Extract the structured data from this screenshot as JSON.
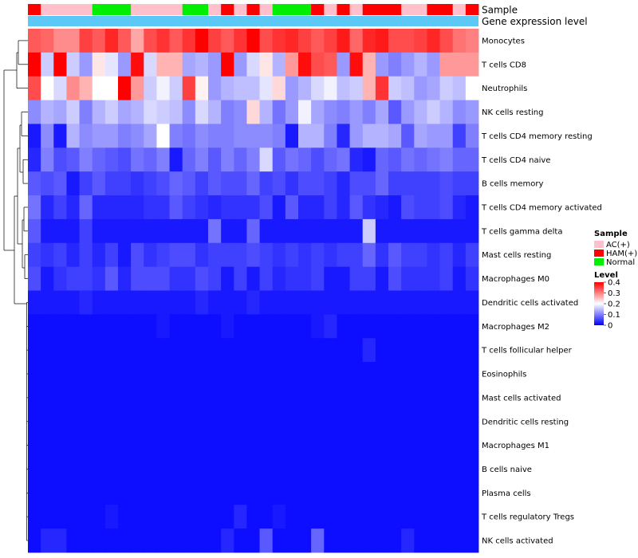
{
  "chart_data": {
    "type": "heatmap",
    "annotation_tracks": [
      {
        "name": "Sample",
        "values": [
          "HAM(+)",
          "AC(+)",
          "AC(+)",
          "AC(+)",
          "AC(+)",
          "Normal",
          "Normal",
          "Normal",
          "AC(+)",
          "AC(+)",
          "AC(+)",
          "AC(+)",
          "Normal",
          "Normal",
          "AC(+)",
          "HAM(+)",
          "AC(+)",
          "HAM(+)",
          "AC(+)",
          "Normal",
          "Normal",
          "Normal",
          "HAM(+)",
          "AC(+)",
          "HAM(+)",
          "AC(+)",
          "HAM(+)",
          "HAM(+)",
          "HAM(+)",
          "AC(+)",
          "AC(+)",
          "HAM(+)",
          "HAM(+)",
          "AC(+)",
          "HAM(+)"
        ]
      },
      {
        "name": "Gene expression level"
      }
    ],
    "rows": [
      "Monocytes",
      "T cells CD8",
      "Neutrophils",
      "NK cells resting",
      "T cells CD4 memory resting",
      "T cells CD4 naive",
      "B cells memory",
      "T cells CD4 memory activated",
      "T cells gamma delta",
      "Mast cells resting",
      "Macrophages M0",
      "Dendritic cells activated",
      "Macrophages M2",
      "T cells follicular helper",
      "Eosinophils",
      "Mast cells activated",
      "Dendritic cells resting",
      "Macrophages M1",
      "B cells naive",
      "Plasma cells",
      "T cells regulatory  Tregs",
      "NK cells activated"
    ],
    "values": [
      [
        0.33,
        0.32,
        0.29,
        0.29,
        0.35,
        0.33,
        0.37,
        0.33,
        0.27,
        0.34,
        0.36,
        0.33,
        0.36,
        0.4,
        0.35,
        0.33,
        0.36,
        0.4,
        0.34,
        0.36,
        0.37,
        0.35,
        0.33,
        0.35,
        0.38,
        0.32,
        0.37,
        0.38,
        0.34,
        0.34,
        0.35,
        0.37,
        0.34,
        0.31,
        0.3
      ],
      [
        0.4,
        0.16,
        0.4,
        0.16,
        0.12,
        0.22,
        0.18,
        0.12,
        0.39,
        0.17,
        0.26,
        0.26,
        0.13,
        0.14,
        0.12,
        0.4,
        0.12,
        0.17,
        0.22,
        0.14,
        0.28,
        0.39,
        0.34,
        0.33,
        0.12,
        0.39,
        0.26,
        0.12,
        0.1,
        0.12,
        0.14,
        0.12,
        0.28,
        0.28,
        0.28
      ],
      [
        0.34,
        0.2,
        0.17,
        0.29,
        0.26,
        0.2,
        0.2,
        0.4,
        0.28,
        0.16,
        0.19,
        0.16,
        0.35,
        0.21,
        0.12,
        0.14,
        0.15,
        0.15,
        0.18,
        0.23,
        0.12,
        0.14,
        0.17,
        0.19,
        0.15,
        0.16,
        0.26,
        0.36,
        0.16,
        0.15,
        0.12,
        0.13,
        0.16,
        0.15,
        0.2
      ],
      [
        0.11,
        0.14,
        0.13,
        0.16,
        0.1,
        0.14,
        0.16,
        0.13,
        0.14,
        0.17,
        0.16,
        0.15,
        0.11,
        0.17,
        0.14,
        0.1,
        0.11,
        0.23,
        0.14,
        0.09,
        0.12,
        0.19,
        0.13,
        0.11,
        0.1,
        0.12,
        0.1,
        0.13,
        0.07,
        0.12,
        0.14,
        0.16,
        0.14,
        0.11,
        0.12
      ],
      [
        0.02,
        0.11,
        0.02,
        0.14,
        0.11,
        0.12,
        0.12,
        0.1,
        0.11,
        0.13,
        0.2,
        0.1,
        0.09,
        0.11,
        0.1,
        0.1,
        0.11,
        0.11,
        0.11,
        0.1,
        0.02,
        0.14,
        0.14,
        0.1,
        0.03,
        0.12,
        0.14,
        0.14,
        0.13,
        0.07,
        0.13,
        0.12,
        0.12,
        0.05,
        0.1
      ],
      [
        0.03,
        0.1,
        0.06,
        0.07,
        0.1,
        0.08,
        0.07,
        0.06,
        0.09,
        0.08,
        0.1,
        0.02,
        0.08,
        0.1,
        0.07,
        0.1,
        0.08,
        0.1,
        0.17,
        0.07,
        0.09,
        0.08,
        0.06,
        0.08,
        0.09,
        0.03,
        0.02,
        0.08,
        0.07,
        0.09,
        0.08,
        0.09,
        0.1,
        0.08,
        0.08
      ],
      [
        0.07,
        0.06,
        0.07,
        0.02,
        0.05,
        0.07,
        0.05,
        0.05,
        0.04,
        0.05,
        0.06,
        0.08,
        0.07,
        0.05,
        0.07,
        0.06,
        0.06,
        0.08,
        0.05,
        0.06,
        0.04,
        0.06,
        0.06,
        0.05,
        0.03,
        0.06,
        0.06,
        0.08,
        0.05,
        0.05,
        0.05,
        0.05,
        0.06,
        0.05,
        0.05
      ],
      [
        0.09,
        0.03,
        0.05,
        0.03,
        0.08,
        0.03,
        0.03,
        0.03,
        0.03,
        0.04,
        0.04,
        0.07,
        0.05,
        0.04,
        0.03,
        0.04,
        0.04,
        0.04,
        0.06,
        0.02,
        0.07,
        0.03,
        0.03,
        0.05,
        0.03,
        0.07,
        0.04,
        0.03,
        0.02,
        0.06,
        0.05,
        0.05,
        0.06,
        0.03,
        0.02
      ],
      [
        0.07,
        0.02,
        0.02,
        0.02,
        0.05,
        0.02,
        0.02,
        0.02,
        0.02,
        0.02,
        0.02,
        0.02,
        0.02,
        0.02,
        0.09,
        0.02,
        0.02,
        0.08,
        0.02,
        0.02,
        0.02,
        0.02,
        0.02,
        0.02,
        0.02,
        0.02,
        0.16,
        0.02,
        0.02,
        0.02,
        0.02,
        0.02,
        0.02,
        0.02,
        0.02
      ],
      [
        0.05,
        0.04,
        0.05,
        0.03,
        0.05,
        0.03,
        0.05,
        0.02,
        0.06,
        0.04,
        0.05,
        0.06,
        0.06,
        0.04,
        0.05,
        0.05,
        0.05,
        0.06,
        0.05,
        0.04,
        0.05,
        0.04,
        0.05,
        0.04,
        0.05,
        0.05,
        0.08,
        0.04,
        0.07,
        0.05,
        0.05,
        0.04,
        0.05,
        0.03,
        0.05
      ],
      [
        0.06,
        0.02,
        0.04,
        0.05,
        0.05,
        0.04,
        0.07,
        0.03,
        0.06,
        0.06,
        0.06,
        0.04,
        0.04,
        0.06,
        0.05,
        0.02,
        0.05,
        0.02,
        0.05,
        0.03,
        0.04,
        0.04,
        0.05,
        0.02,
        0.02,
        0.05,
        0.05,
        0.02,
        0.06,
        0.04,
        0.04,
        0.04,
        0.05,
        0.02,
        0.04
      ],
      [
        0.02,
        0.02,
        0.02,
        0.02,
        0.03,
        0.02,
        0.02,
        0.02,
        0.02,
        0.02,
        0.02,
        0.02,
        0.02,
        0.03,
        0.02,
        0.02,
        0.02,
        0.03,
        0.02,
        0.02,
        0.02,
        0.02,
        0.02,
        0.02,
        0.02,
        0.02,
        0.02,
        0.02,
        0.02,
        0.02,
        0.02,
        0.02,
        0.02,
        0.02,
        0.02
      ],
      [
        0.01,
        0.01,
        0.01,
        0.01,
        0.01,
        0.01,
        0.01,
        0.01,
        0.01,
        0.01,
        0.02,
        0.01,
        0.01,
        0.01,
        0.01,
        0.02,
        0.01,
        0.01,
        0.01,
        0.01,
        0.01,
        0.01,
        0.02,
        0.03,
        0.01,
        0.01,
        0.01,
        0.01,
        0.01,
        0.01,
        0.01,
        0.01,
        0.01,
        0.01,
        0.01
      ],
      [
        0.01,
        0.01,
        0.01,
        0.01,
        0.01,
        0.01,
        0.01,
        0.01,
        0.01,
        0.01,
        0.01,
        0.01,
        0.01,
        0.01,
        0.01,
        0.01,
        0.01,
        0.01,
        0.01,
        0.01,
        0.01,
        0.01,
        0.01,
        0.01,
        0.01,
        0.01,
        0.03,
        0.01,
        0.01,
        0.01,
        0.01,
        0.01,
        0.01,
        0.01,
        0.01
      ],
      [
        0.01,
        0.01,
        0.01,
        0.01,
        0.01,
        0.01,
        0.01,
        0.01,
        0.01,
        0.01,
        0.01,
        0.01,
        0.01,
        0.01,
        0.01,
        0.01,
        0.01,
        0.01,
        0.01,
        0.01,
        0.01,
        0.01,
        0.01,
        0.01,
        0.01,
        0.01,
        0.01,
        0.01,
        0.01,
        0.01,
        0.01,
        0.01,
        0.01,
        0.01,
        0.01
      ],
      [
        0.01,
        0.01,
        0.01,
        0.01,
        0.01,
        0.01,
        0.01,
        0.01,
        0.01,
        0.01,
        0.01,
        0.01,
        0.01,
        0.01,
        0.01,
        0.01,
        0.01,
        0.01,
        0.01,
        0.01,
        0.01,
        0.01,
        0.01,
        0.01,
        0.01,
        0.01,
        0.01,
        0.01,
        0.01,
        0.01,
        0.01,
        0.01,
        0.01,
        0.01,
        0.01
      ],
      [
        0.01,
        0.01,
        0.01,
        0.01,
        0.01,
        0.01,
        0.01,
        0.01,
        0.01,
        0.01,
        0.01,
        0.01,
        0.01,
        0.01,
        0.01,
        0.01,
        0.01,
        0.01,
        0.01,
        0.01,
        0.01,
        0.01,
        0.01,
        0.01,
        0.01,
        0.01,
        0.01,
        0.01,
        0.01,
        0.01,
        0.01,
        0.01,
        0.01,
        0.01,
        0.01
      ],
      [
        0.01,
        0.01,
        0.01,
        0.01,
        0.01,
        0.01,
        0.01,
        0.01,
        0.01,
        0.01,
        0.01,
        0.01,
        0.01,
        0.01,
        0.01,
        0.01,
        0.01,
        0.01,
        0.01,
        0.01,
        0.01,
        0.01,
        0.01,
        0.01,
        0.01,
        0.01,
        0.01,
        0.01,
        0.01,
        0.01,
        0.01,
        0.01,
        0.01,
        0.01,
        0.01
      ],
      [
        0.01,
        0.01,
        0.01,
        0.01,
        0.01,
        0.01,
        0.01,
        0.01,
        0.01,
        0.01,
        0.01,
        0.01,
        0.01,
        0.01,
        0.01,
        0.01,
        0.01,
        0.01,
        0.01,
        0.01,
        0.01,
        0.01,
        0.01,
        0.01,
        0.01,
        0.01,
        0.01,
        0.01,
        0.01,
        0.01,
        0.01,
        0.01,
        0.01,
        0.01,
        0.01
      ],
      [
        0.01,
        0.01,
        0.01,
        0.01,
        0.01,
        0.01,
        0.01,
        0.01,
        0.01,
        0.01,
        0.01,
        0.01,
        0.01,
        0.01,
        0.01,
        0.01,
        0.01,
        0.01,
        0.01,
        0.01,
        0.01,
        0.01,
        0.01,
        0.01,
        0.01,
        0.01,
        0.01,
        0.01,
        0.01,
        0.01,
        0.01,
        0.01,
        0.01,
        0.01,
        0.01
      ],
      [
        0.01,
        0.01,
        0.01,
        0.01,
        0.01,
        0.01,
        0.02,
        0.01,
        0.01,
        0.01,
        0.01,
        0.01,
        0.01,
        0.01,
        0.01,
        0.01,
        0.03,
        0.01,
        0.01,
        0.02,
        0.01,
        0.01,
        0.01,
        0.01,
        0.01,
        0.01,
        0.01,
        0.01,
        0.01,
        0.01,
        0.01,
        0.01,
        0.01,
        0.01,
        0.01
      ],
      [
        0.01,
        0.03,
        0.03,
        0.01,
        0.01,
        0.01,
        0.01,
        0.01,
        0.01,
        0.01,
        0.01,
        0.01,
        0.01,
        0.01,
        0.01,
        0.03,
        0.01,
        0.01,
        0.07,
        0.01,
        0.01,
        0.01,
        0.08,
        0.01,
        0.01,
        0.01,
        0.01,
        0.01,
        0.01,
        0.03,
        0.01,
        0.01,
        0.01,
        0.01,
        0.01
      ]
    ],
    "color_scale": {
      "low": "#0000ff",
      "mid": "#ffffff",
      "high": "#ff0000",
      "domain": [
        0,
        0.4
      ],
      "mid_value": 0.2
    },
    "legend": {
      "sample_title": "Sample",
      "sample_entries": [
        {
          "label": "AC(+)",
          "color": "#ffc0cb"
        },
        {
          "label": "HAM(+)",
          "color": "#ff0000"
        },
        {
          "label": "Normal",
          "color": "#00ee00"
        }
      ],
      "level_title": "Level",
      "level_ticks": [
        "0.4",
        "0.3",
        "0.2",
        "0.1",
        "0"
      ],
      "placement": "right"
    },
    "expression_bar_color": "#5bc8f5"
  }
}
